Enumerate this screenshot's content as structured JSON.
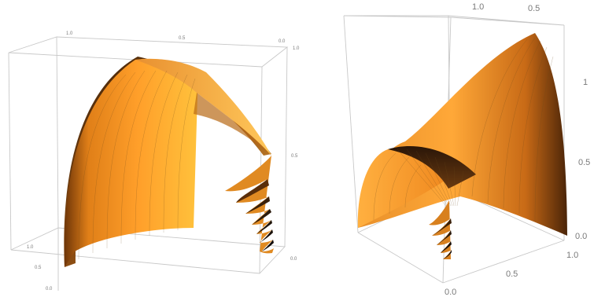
{
  "figures": [
    {
      "id": "left",
      "tick_labels": {
        "top_edge": [
          "1.0",
          "0.5",
          "0.0"
        ],
        "right_edge": [
          "1.0",
          "0.5",
          "0.0"
        ],
        "left_edge": [
          "1.0",
          "0.5",
          "0.0"
        ]
      }
    },
    {
      "id": "right",
      "tick_labels": {
        "top_edge": [
          "1.0",
          "0.5"
        ],
        "right_edge": [
          "1",
          "0.5",
          "0.0"
        ],
        "bottom_edge": [
          "0.0",
          "0.5",
          "1.0"
        ]
      }
    }
  ],
  "colors": {
    "surface_light": "#ffb43a",
    "surface_mid": "#f08c1e",
    "surface_dark": "#7a3e0c",
    "surface_shadow": "#2a1a0c",
    "box": "#c8c8c8",
    "tick_text": "#7a7a7a"
  }
}
